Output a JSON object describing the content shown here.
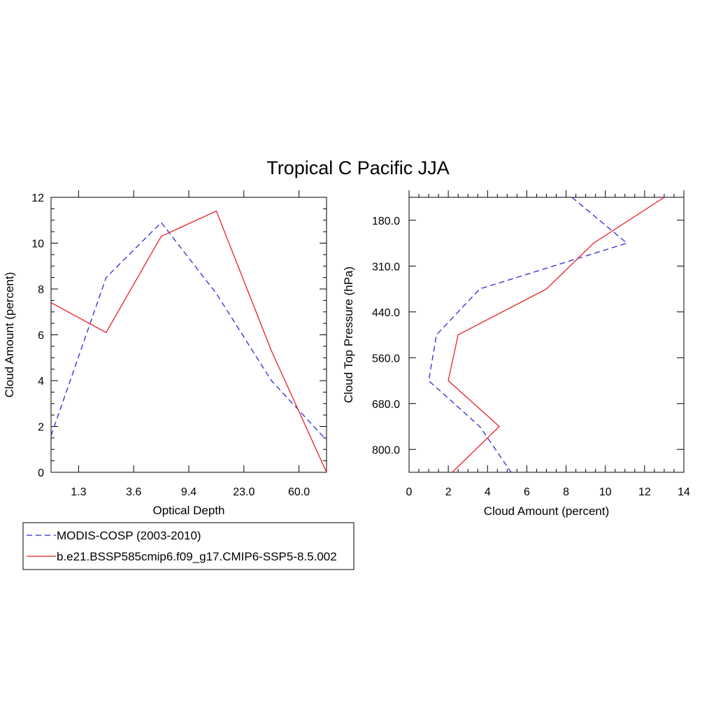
{
  "title": "Tropical C Pacific JJA",
  "colors": {
    "obs": "#2a2ad4",
    "model": "#e8202a"
  },
  "legend": [
    {
      "series": "obs",
      "label": "MODIS-COSP (2003-2010)",
      "dash": "dashed"
    },
    {
      "series": "model",
      "label": "b.e21.BSSP585cmip6.f09_g17.CMIP6-SSP5-8.5.002",
      "dash": "solid"
    }
  ],
  "chart_data": [
    {
      "type": "line",
      "title": "",
      "xlabel": "Optical Depth",
      "ylabel": "Cloud Amount (percent)",
      "x_tick_labels": [
        "1.3",
        "3.6",
        "9.4",
        "23.0",
        "60.0"
      ],
      "y_ticks": [
        0,
        2,
        4,
        6,
        8,
        10,
        12
      ],
      "ylim": [
        0,
        12
      ],
      "series": [
        {
          "name": "MODIS-COSP (2003-2010)",
          "values": [
            1.6,
            8.5,
            10.9,
            7.8,
            4.0,
            1.4
          ]
        },
        {
          "name": "b.e21.BSSP585cmip6.f09_g17.CMIP6-SSP5-8.5.002",
          "values": [
            7.4,
            6.1,
            10.3,
            11.4,
            5.3,
            0.0
          ]
        }
      ]
    },
    {
      "type": "line",
      "title": "",
      "xlabel": "Cloud Amount (percent)",
      "ylabel": "Cloud Top Pressure (hPa)",
      "xlim": [
        0,
        14
      ],
      "x_ticks": [
        0,
        2,
        4,
        6,
        8,
        10,
        12,
        14
      ],
      "y_tick_labels": [
        "180.0",
        "310.0",
        "440.0",
        "560.0",
        "680.0",
        "800.0"
      ],
      "series": [
        {
          "name": "MODIS-COSP (2003-2010)",
          "values": [
            8.3,
            11.1,
            3.6,
            1.4,
            1.0,
            3.6,
            5.2
          ]
        },
        {
          "name": "b.e21.BSSP585cmip6.f09_g17.CMIP6-SSP5-8.5.002",
          "values": [
            13.0,
            9.4,
            7.0,
            2.5,
            2.0,
            4.6,
            2.2
          ]
        }
      ]
    }
  ]
}
